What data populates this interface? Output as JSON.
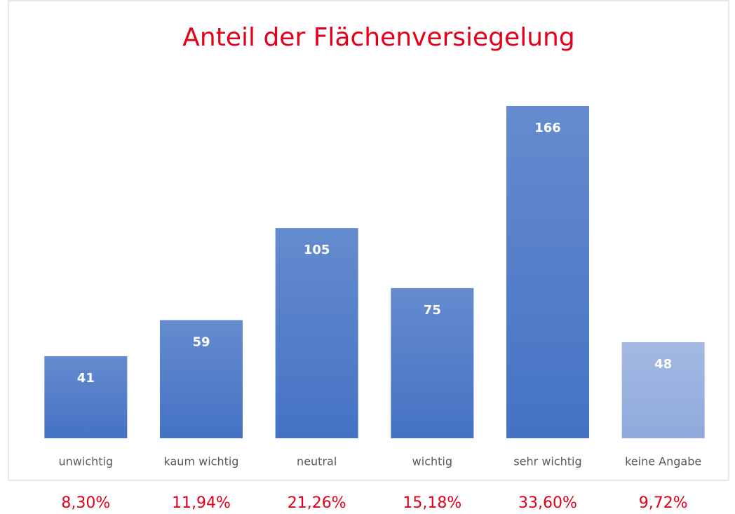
{
  "chart_data": {
    "type": "bar",
    "title": "Anteil der Flächenversiegelung",
    "categories": [
      "unwichtig",
      "kaum wichtig",
      "neutral",
      "wichtig",
      "sehr wichtig",
      "keine Angabe"
    ],
    "values": [
      41,
      59,
      105,
      75,
      166,
      48
    ],
    "colors": [
      "#4472c4",
      "#4472c4",
      "#4472c4",
      "#4472c4",
      "#4472c4",
      "#8faadc"
    ],
    "percentages": [
      "8,30%",
      "11,94%",
      "21,26%",
      "15,18%",
      "33,60%",
      "9,72%"
    ],
    "title_color": "#e2001a"
  }
}
